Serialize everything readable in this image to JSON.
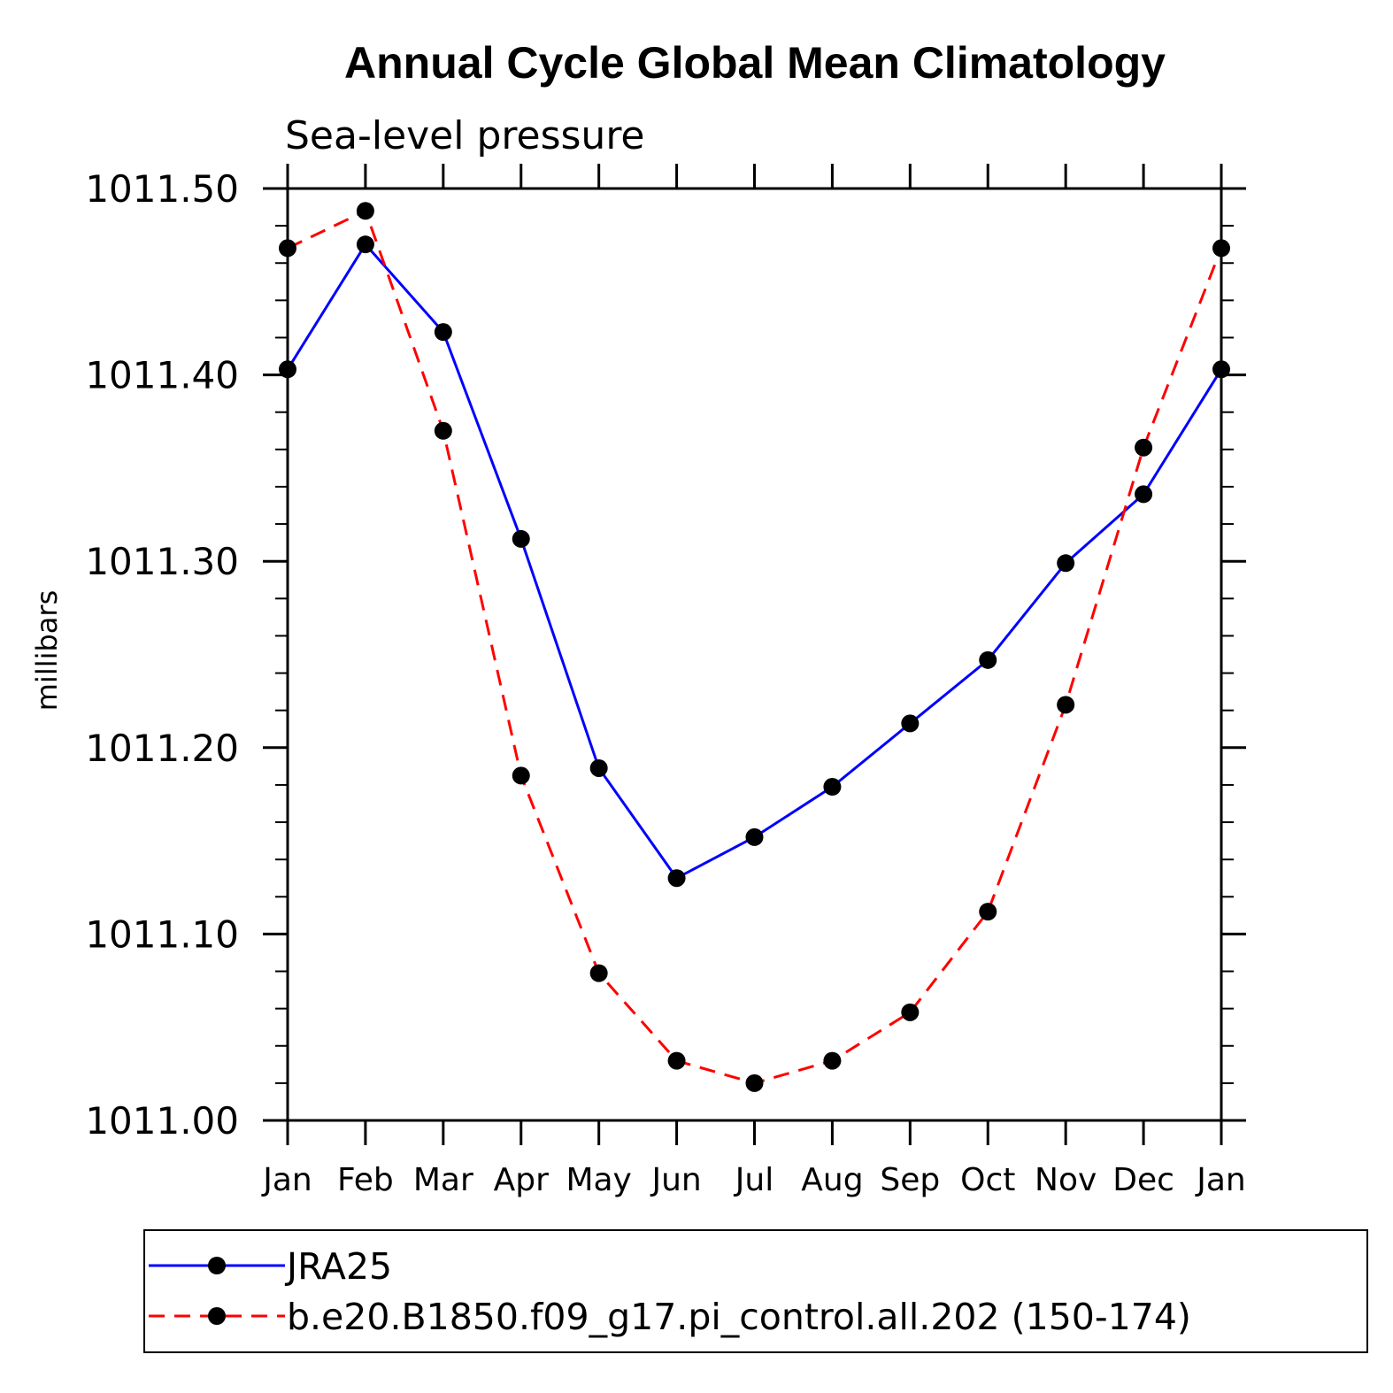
{
  "chart_data": {
    "type": "line",
    "title": "Annual Cycle Global Mean Climatology",
    "subtitle": "Sea-level pressure",
    "xlabel": "",
    "ylabel": "millibars",
    "categories": [
      "Jan",
      "Feb",
      "Mar",
      "Apr",
      "May",
      "Jun",
      "Jul",
      "Aug",
      "Sep",
      "Oct",
      "Nov",
      "Dec",
      "Jan"
    ],
    "ylim": [
      1011.0,
      1011.5
    ],
    "yticks": [
      "1011.00",
      "1011.10",
      "1011.20",
      "1011.30",
      "1011.40",
      "1011.50"
    ],
    "ytick_values": [
      1011.0,
      1011.1,
      1011.2,
      1011.3,
      1011.4,
      1011.5
    ],
    "series": [
      {
        "name": "JRA25",
        "color": "#0000ff",
        "dash": "solid",
        "marker": "filled-circle",
        "values": [
          1011.403,
          1011.47,
          1011.423,
          1011.312,
          1011.189,
          1011.13,
          1011.152,
          1011.179,
          1011.213,
          1011.247,
          1011.299,
          1011.336,
          1011.403
        ]
      },
      {
        "name": "b.e20.B1850.f09_g17.pi_control.all.202 (150-174)",
        "color": "#ff0000",
        "dash": "dashed",
        "marker": "filled-circle",
        "values": [
          1011.468,
          1011.488,
          1011.37,
          1011.185,
          1011.079,
          1011.032,
          1011.02,
          1011.032,
          1011.058,
          1011.112,
          1011.223,
          1011.361,
          1011.468
        ]
      }
    ],
    "legend_position": "bottom",
    "grid": false
  }
}
